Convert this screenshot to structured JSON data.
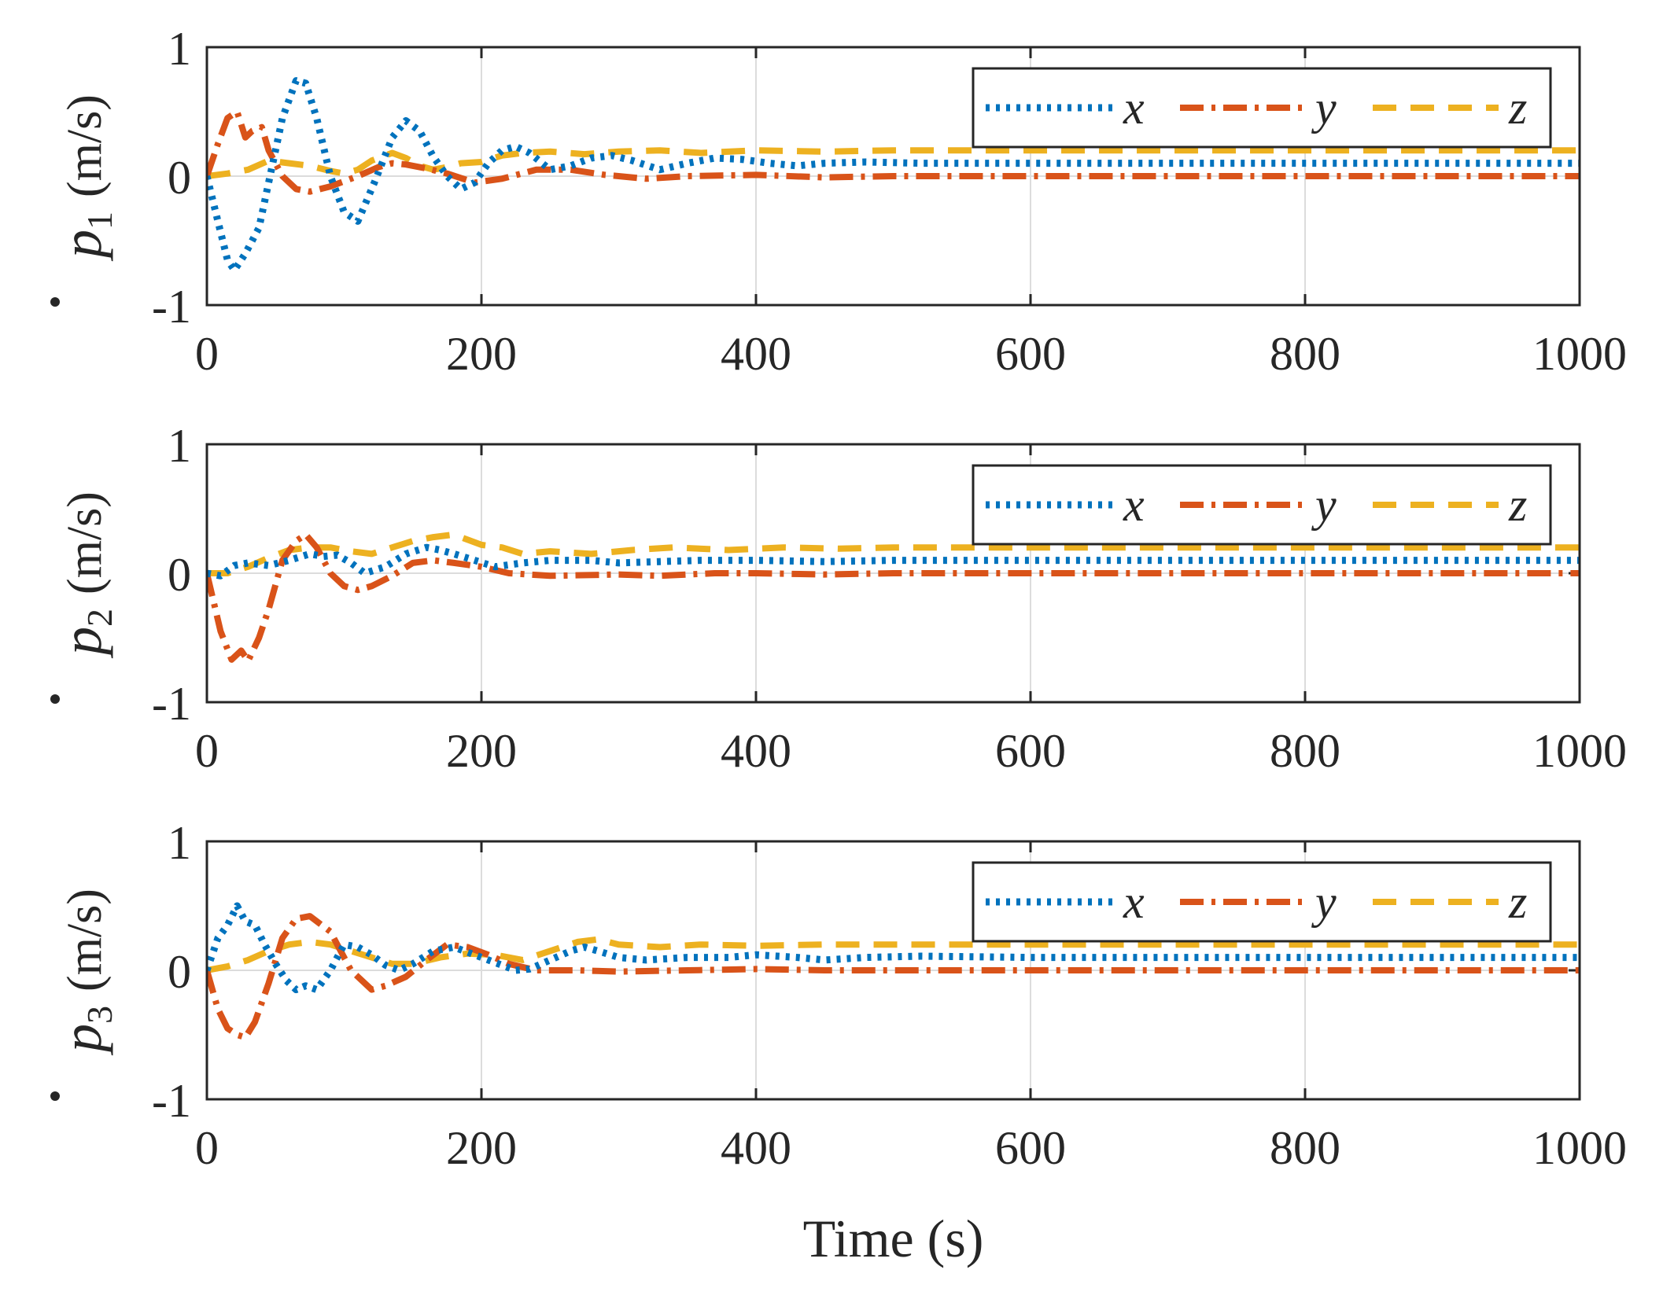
{
  "chart_data": [
    {
      "type": "line",
      "ylabel": {
        "symbol": "p",
        "subscript": "1",
        "unit": "(m/s)"
      },
      "xlabel": "",
      "xlim": [
        0,
        1000
      ],
      "ylim": [
        -1,
        1
      ],
      "xticks": [
        "0",
        "200",
        "400",
        "600",
        "800",
        "1000"
      ],
      "yticks": [
        "-1",
        "0",
        "1"
      ],
      "grid": true,
      "legend_position": "top-right",
      "series": [
        {
          "name": "x",
          "style": "dotted",
          "color": "#0072BD",
          "x": [
            0,
            8,
            15,
            20,
            28,
            38,
            45,
            55,
            65,
            72,
            80,
            90,
            100,
            110,
            122,
            135,
            145,
            155,
            165,
            175,
            185,
            195,
            205,
            215,
            225,
            235,
            250,
            265,
            280,
            295,
            310,
            330,
            350,
            370,
            390,
            410,
            430,
            450,
            480,
            520,
            600,
            700,
            800,
            900,
            1000
          ],
          "values": [
            0,
            -0.35,
            -0.65,
            -0.73,
            -0.6,
            -0.4,
            -0.05,
            0.45,
            0.74,
            0.72,
            0.45,
            0.0,
            -0.28,
            -0.35,
            -0.05,
            0.3,
            0.43,
            0.35,
            0.15,
            0.0,
            -0.1,
            -0.05,
            0.1,
            0.2,
            0.23,
            0.18,
            0.05,
            0.08,
            0.14,
            0.16,
            0.12,
            0.05,
            0.1,
            0.14,
            0.13,
            0.1,
            0.08,
            0.1,
            0.11,
            0.1,
            0.1,
            0.1,
            0.1,
            0.1,
            0.1
          ]
        },
        {
          "name": "y",
          "style": "dashdot",
          "color": "#D95319",
          "x": [
            0,
            8,
            15,
            22,
            28,
            33,
            40,
            45,
            55,
            65,
            75,
            90,
            110,
            125,
            135,
            145,
            160,
            175,
            195,
            215,
            240,
            265,
            290,
            320,
            350,
            400,
            450,
            500,
            600,
            700,
            800,
            900,
            1000
          ],
          "values": [
            0,
            0.25,
            0.45,
            0.5,
            0.3,
            0.35,
            0.38,
            0.2,
            0.0,
            -0.1,
            -0.12,
            -0.08,
            0.0,
            0.07,
            0.1,
            0.09,
            0.06,
            0.02,
            -0.05,
            -0.02,
            0.05,
            0.05,
            0.01,
            -0.02,
            0.0,
            0.01,
            -0.01,
            0.0,
            0.0,
            0.0,
            0.0,
            0.0,
            0.0
          ]
        },
        {
          "name": "z",
          "style": "dashed",
          "color": "#EDB120",
          "x": [
            0,
            15,
            30,
            45,
            60,
            75,
            90,
            100,
            110,
            120,
            135,
            145,
            155,
            165,
            175,
            185,
            200,
            215,
            230,
            250,
            275,
            300,
            330,
            360,
            400,
            450,
            500,
            550,
            600,
            700,
            800,
            900,
            1000
          ],
          "values": [
            0,
            0.02,
            0.05,
            0.12,
            0.1,
            0.08,
            0.04,
            0.02,
            0.05,
            0.12,
            0.18,
            0.14,
            0.08,
            0.05,
            0.07,
            0.1,
            0.11,
            0.16,
            0.18,
            0.19,
            0.17,
            0.19,
            0.2,
            0.18,
            0.2,
            0.19,
            0.2,
            0.2,
            0.2,
            0.2,
            0.2,
            0.2,
            0.2
          ]
        }
      ]
    },
    {
      "type": "line",
      "ylabel": {
        "symbol": "p",
        "subscript": "2",
        "unit": "(m/s)"
      },
      "xlabel": "",
      "xlim": [
        0,
        1000
      ],
      "ylim": [
        -1,
        1
      ],
      "xticks": [
        "0",
        "200",
        "400",
        "600",
        "800",
        "1000"
      ],
      "yticks": [
        "-1",
        "0",
        "1"
      ],
      "grid": true,
      "legend_position": "top-right",
      "series": [
        {
          "name": "x",
          "style": "dotted",
          "color": "#0072BD",
          "x": [
            0,
            10,
            20,
            30,
            45,
            60,
            75,
            85,
            95,
            105,
            115,
            130,
            145,
            160,
            170,
            180,
            195,
            210,
            230,
            250,
            280,
            300,
            330,
            360,
            400,
            450,
            500,
            600,
            700,
            800,
            900,
            1000
          ],
          "values": [
            0,
            -0.02,
            0.06,
            0.08,
            0.06,
            0.1,
            0.15,
            0.13,
            0.14,
            0.08,
            0.0,
            0.05,
            0.15,
            0.2,
            0.18,
            0.15,
            0.1,
            0.05,
            0.08,
            0.1,
            0.1,
            0.08,
            0.09,
            0.1,
            0.1,
            0.09,
            0.1,
            0.1,
            0.1,
            0.1,
            0.1,
            0.1
          ]
        },
        {
          "name": "y",
          "style": "dashdot",
          "color": "#D95319",
          "x": [
            0,
            10,
            18,
            25,
            30,
            38,
            45,
            55,
            65,
            72,
            80,
            90,
            100,
            110,
            120,
            135,
            150,
            165,
            180,
            200,
            220,
            250,
            300,
            330,
            370,
            400,
            450,
            500,
            600,
            700,
            800,
            900,
            1000
          ],
          "values": [
            0,
            -0.45,
            -0.67,
            -0.6,
            -0.68,
            -0.5,
            -0.28,
            0.1,
            0.25,
            0.3,
            0.2,
            0.0,
            -0.1,
            -0.13,
            -0.1,
            -0.02,
            0.08,
            0.1,
            0.08,
            0.05,
            0.0,
            -0.02,
            -0.01,
            -0.02,
            0.0,
            0.0,
            -0.01,
            0.0,
            0.0,
            0.0,
            0.0,
            0.0,
            0.0
          ]
        },
        {
          "name": "z",
          "style": "dashed",
          "color": "#EDB120",
          "x": [
            0,
            15,
            30,
            45,
            60,
            75,
            90,
            105,
            120,
            135,
            150,
            165,
            180,
            190,
            200,
            215,
            230,
            250,
            280,
            310,
            340,
            380,
            420,
            460,
            500,
            600,
            700,
            800,
            900,
            1000
          ],
          "values": [
            0,
            0.0,
            0.05,
            0.12,
            0.18,
            0.2,
            0.2,
            0.17,
            0.15,
            0.2,
            0.25,
            0.28,
            0.3,
            0.26,
            0.22,
            0.2,
            0.15,
            0.17,
            0.15,
            0.18,
            0.2,
            0.18,
            0.2,
            0.19,
            0.2,
            0.2,
            0.2,
            0.2,
            0.2,
            0.2
          ]
        }
      ]
    },
    {
      "type": "line",
      "ylabel": {
        "symbol": "p",
        "subscript": "3",
        "unit": "(m/s)"
      },
      "xlabel": "Time (s)",
      "xlim": [
        0,
        1000
      ],
      "ylim": [
        -1,
        1
      ],
      "xticks": [
        "0",
        "200",
        "400",
        "600",
        "800",
        "1000"
      ],
      "yticks": [
        "-1",
        "0",
        "1"
      ],
      "grid": true,
      "legend_position": "top-right",
      "series": [
        {
          "name": "x",
          "style": "dotted",
          "color": "#0072BD",
          "x": [
            0,
            8,
            15,
            22,
            28,
            35,
            42,
            50,
            58,
            65,
            72,
            80,
            90,
            100,
            110,
            120,
            130,
            140,
            150,
            165,
            180,
            195,
            210,
            225,
            235,
            250,
            265,
            275,
            285,
            300,
            320,
            350,
            380,
            400,
            430,
            450,
            480,
            520,
            600,
            700,
            800,
            900,
            1000
          ],
          "values": [
            0,
            0.25,
            0.35,
            0.5,
            0.38,
            0.35,
            0.2,
            0.05,
            -0.08,
            -0.15,
            -0.12,
            -0.15,
            0.0,
            0.2,
            0.18,
            0.12,
            0.04,
            0.0,
            0.05,
            0.15,
            0.18,
            0.12,
            0.06,
            0.0,
            0.01,
            0.08,
            0.15,
            0.18,
            0.15,
            0.1,
            0.08,
            0.1,
            0.1,
            0.12,
            0.1,
            0.08,
            0.1,
            0.11,
            0.1,
            0.1,
            0.1,
            0.1,
            0.1
          ]
        },
        {
          "name": "y",
          "style": "dashdot",
          "color": "#D95319",
          "x": [
            0,
            8,
            15,
            22,
            28,
            35,
            45,
            55,
            65,
            75,
            90,
            105,
            120,
            130,
            145,
            160,
            175,
            190,
            205,
            220,
            240,
            270,
            300,
            350,
            400,
            450,
            500,
            600,
            700,
            800,
            900,
            1000
          ],
          "values": [
            0,
            -0.3,
            -0.45,
            -0.5,
            -0.52,
            -0.4,
            -0.1,
            0.25,
            0.4,
            0.42,
            0.3,
            0.0,
            -0.15,
            -0.12,
            -0.05,
            0.08,
            0.2,
            0.18,
            0.12,
            0.05,
            0.0,
            0.0,
            -0.01,
            0.0,
            0.01,
            0.0,
            0.0,
            0.0,
            0.0,
            0.0,
            0.0,
            0.0
          ]
        },
        {
          "name": "z",
          "style": "dashed",
          "color": "#EDB120",
          "x": [
            0,
            15,
            30,
            45,
            60,
            75,
            90,
            105,
            120,
            135,
            150,
            170,
            190,
            210,
            230,
            250,
            270,
            285,
            300,
            330,
            360,
            400,
            450,
            500,
            550,
            600,
            700,
            800,
            900,
            1000
          ],
          "values": [
            0,
            0.03,
            0.08,
            0.15,
            0.2,
            0.22,
            0.2,
            0.15,
            0.1,
            0.05,
            0.05,
            0.1,
            0.13,
            0.12,
            0.08,
            0.15,
            0.22,
            0.24,
            0.2,
            0.18,
            0.2,
            0.19,
            0.2,
            0.2,
            0.2,
            0.2,
            0.2,
            0.2,
            0.2,
            0.2
          ]
        }
      ]
    }
  ]
}
